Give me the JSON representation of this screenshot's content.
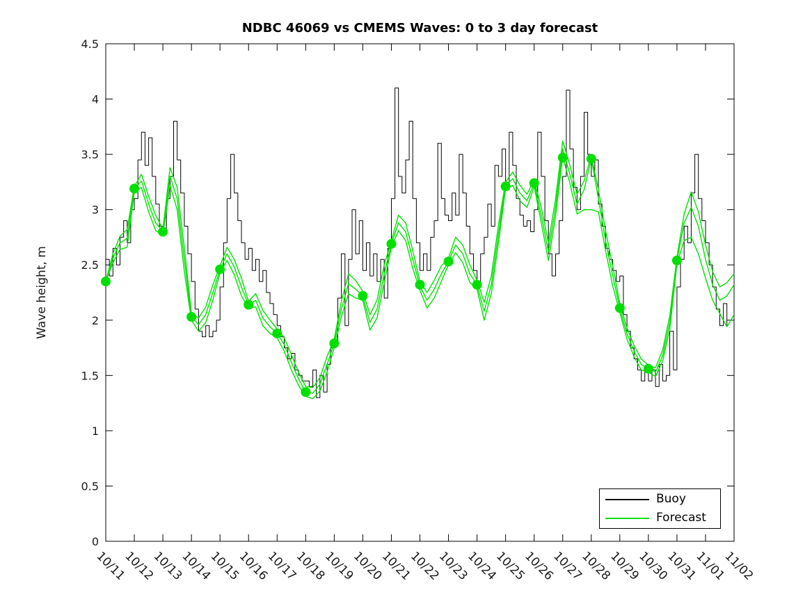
{
  "figure": {
    "background": "#ffffff"
  },
  "legend": {
    "position": "lower right inside",
    "items": [
      {
        "label": "Buoy",
        "color": "#000000"
      },
      {
        "label": "Forecast",
        "color": "#00e000"
      }
    ]
  },
  "chart_data": {
    "type": "line",
    "title": "NDBC 46069 vs CMEMS Waves: 0 to 3 day forecast",
    "xlabel": "",
    "ylabel": "Wave height, m",
    "ylim": [
      0,
      4.5
    ],
    "ytick_values": [
      0,
      0.5,
      1,
      1.5,
      2,
      2.5,
      3,
      3.5,
      4,
      4.5
    ],
    "ytick_labels": [
      "0",
      "0.5",
      "1",
      "1.5",
      "2",
      "2.5",
      "3",
      "3.5",
      "4",
      "4.5"
    ],
    "xtick_labels": [
      "10/11",
      "10/12",
      "10/13",
      "10/14",
      "10/15",
      "10/16",
      "10/17",
      "10/18",
      "10/19",
      "10/20",
      "10/21",
      "10/22",
      "10/23",
      "10/24",
      "10/25",
      "10/26",
      "10/27",
      "10/28",
      "10/29",
      "10/30",
      "10/31",
      "11/01",
      "11/02"
    ],
    "x_unit": "days since 10/11 00:00",
    "xlim_days": [
      0,
      22
    ],
    "grid": false,
    "tick_direction": "in",
    "series": [
      {
        "name": "Buoy",
        "color": "#000000",
        "line_width": 1,
        "draw_style": "steps",
        "t0_days": 0,
        "t_step_days": 0.125,
        "values": [
          2.55,
          2.4,
          2.65,
          2.5,
          2.75,
          2.9,
          2.7,
          3.0,
          3.1,
          3.45,
          3.7,
          3.4,
          3.65,
          3.3,
          3.05,
          2.85,
          2.8,
          3.1,
          3.3,
          3.8,
          3.45,
          3.15,
          2.85,
          2.6,
          2.35,
          2.1,
          1.9,
          1.85,
          1.95,
          1.85,
          1.9,
          2.0,
          2.3,
          2.7,
          3.1,
          3.5,
          3.15,
          2.9,
          2.7,
          2.55,
          2.65,
          2.45,
          2.55,
          2.35,
          2.45,
          2.25,
          2.15,
          2.05,
          1.95,
          1.85,
          1.75,
          1.65,
          1.7,
          1.55,
          1.5,
          1.45,
          1.45,
          1.4,
          1.55,
          1.3,
          1.5,
          1.35,
          1.6,
          1.75,
          1.8,
          2.2,
          2.6,
          1.95,
          2.55,
          3.0,
          2.6,
          2.9,
          2.45,
          2.7,
          2.4,
          2.6,
          2.35,
          2.55,
          2.2,
          2.65,
          3.1,
          4.1,
          3.3,
          3.15,
          3.45,
          3.8,
          3.1,
          2.7,
          2.45,
          2.6,
          2.45,
          2.75,
          2.9,
          3.6,
          3.1,
          2.95,
          2.9,
          3.15,
          2.95,
          3.5,
          3.15,
          2.85,
          2.6,
          2.45,
          2.35,
          2.6,
          2.75,
          3.05,
          2.85,
          3.4,
          3.3,
          3.55,
          3.2,
          3.7,
          3.4,
          3.1,
          2.95,
          2.85,
          2.9,
          2.8,
          3.0,
          3.7,
          3.3,
          2.9,
          2.6,
          2.4,
          2.6,
          2.9,
          3.3,
          4.08,
          3.55,
          3.2,
          3.0,
          3.3,
          3.88,
          3.5,
          3.3,
          3.45,
          3.05,
          2.85,
          2.65,
          2.55,
          2.45,
          2.35,
          2.4,
          2.05,
          1.9,
          1.75,
          1.65,
          1.55,
          1.45,
          1.55,
          1.45,
          1.55,
          1.4,
          1.6,
          1.45,
          1.5,
          1.9,
          1.55,
          2.3,
          2.55,
          2.85,
          2.7,
          3.15,
          3.5,
          3.1,
          2.9,
          2.7,
          2.5,
          2.3,
          2.1,
          1.95,
          2.15,
          1.95
        ]
      },
      {
        "name": "Forecast run 1",
        "color": "#00e000",
        "line_width": 1.4,
        "draw_style": "linear",
        "t0_days": 0,
        "t_step_days": 0.25,
        "values": [
          2.35,
          2.6,
          2.76,
          2.82,
          3.21,
          3.32,
          3.12,
          2.95,
          2.82,
          3.38,
          3.2,
          2.66,
          2.06,
          2.02,
          2.12,
          2.32,
          2.49,
          2.66,
          2.55,
          2.38,
          2.17,
          2.24,
          2.09,
          2.0,
          1.92,
          1.84,
          1.69,
          1.53,
          1.4,
          1.39,
          1.48,
          1.67,
          1.83,
          2.17,
          2.42,
          2.36,
          2.26,
          2.05,
          2.18,
          2.5,
          2.72,
          2.95,
          2.88,
          2.63,
          2.35,
          2.25,
          2.36,
          2.49,
          2.56,
          2.75,
          2.68,
          2.5,
          2.36,
          2.16,
          2.4,
          2.86,
          3.25,
          3.34,
          3.22,
          3.14,
          3.27,
          3.02,
          2.7,
          3.1,
          3.62,
          3.4,
          3.14,
          3.26,
          3.49,
          3.18,
          2.81,
          2.49,
          2.15,
          1.93,
          1.77,
          1.65,
          1.59,
          1.57,
          1.73,
          2.04,
          2.57,
          2.96,
          3.16,
          2.98,
          2.68,
          2.44,
          2.3,
          2.34,
          2.42
        ]
      },
      {
        "name": "Forecast run 2",
        "color": "#00e000",
        "line_width": 1.4,
        "draw_style": "linear",
        "t0_days": 0,
        "t_step_days": 0.25,
        "values": [
          2.35,
          2.56,
          2.7,
          2.74,
          3.19,
          3.26,
          3.05,
          2.88,
          2.8,
          3.3,
          3.1,
          2.55,
          2.03,
          1.96,
          2.05,
          2.25,
          2.46,
          2.6,
          2.48,
          2.3,
          2.14,
          2.18,
          2.02,
          1.94,
          1.88,
          1.78,
          1.62,
          1.47,
          1.35,
          1.34,
          1.42,
          1.6,
          1.79,
          2.1,
          2.33,
          2.28,
          2.22,
          1.98,
          2.1,
          2.42,
          2.69,
          2.88,
          2.8,
          2.55,
          2.31,
          2.18,
          2.28,
          2.42,
          2.53,
          2.68,
          2.6,
          2.42,
          2.32,
          2.08,
          2.32,
          2.78,
          3.22,
          3.28,
          3.15,
          3.08,
          3.24,
          2.95,
          2.62,
          3.02,
          3.55,
          3.32,
          3.05,
          3.18,
          3.46,
          3.1,
          2.72,
          2.4,
          2.11,
          1.88,
          1.72,
          1.6,
          1.56,
          1.53,
          1.68,
          1.98,
          2.54,
          2.88,
          3.02,
          2.85,
          2.55,
          2.32,
          2.18,
          2.22,
          2.32
        ]
      },
      {
        "name": "Forecast run 3",
        "color": "#00e000",
        "line_width": 1.4,
        "draw_style": "linear",
        "t0_days": 0,
        "t_step_days": 0.25,
        "values": [
          2.35,
          2.52,
          2.64,
          2.66,
          3.16,
          3.2,
          2.98,
          2.81,
          2.77,
          3.22,
          3.0,
          2.44,
          2.0,
          1.9,
          1.98,
          2.18,
          2.43,
          2.54,
          2.41,
          2.22,
          2.11,
          2.12,
          1.95,
          1.88,
          1.84,
          1.72,
          1.55,
          1.41,
          1.31,
          1.29,
          1.36,
          1.53,
          1.75,
          2.03,
          2.24,
          2.2,
          2.18,
          1.91,
          2.02,
          2.34,
          2.66,
          2.81,
          2.72,
          2.47,
          2.27,
          2.11,
          2.2,
          2.35,
          2.5,
          2.61,
          2.52,
          2.34,
          2.28,
          2.0,
          2.24,
          2.7,
          3.19,
          3.22,
          3.08,
          3.02,
          3.21,
          2.88,
          2.54,
          2.94,
          3.48,
          3.24,
          2.96,
          3.0,
          3.0,
          2.98,
          2.63,
          2.31,
          2.07,
          1.83,
          1.67,
          1.55,
          1.53,
          1.49,
          1.63,
          1.92,
          2.51,
          2.72,
          2.75,
          2.6,
          2.38,
          2.18,
          2.06,
          1.94,
          2.05
        ]
      }
    ],
    "forecast_start_markers": {
      "marker": "filled-circle",
      "color": "#00e000",
      "radius_px": 7,
      "dates": [
        "10/11",
        "10/12",
        "10/13",
        "10/14",
        "10/15",
        "10/16",
        "10/17",
        "10/18",
        "10/19",
        "10/20",
        "10/21",
        "10/22",
        "10/23",
        "10/24",
        "10/25",
        "10/26",
        "10/27",
        "10/28",
        "10/29",
        "10/30",
        "10/31"
      ],
      "x_days": [
        0,
        1,
        2,
        3,
        4,
        5,
        6,
        7,
        8,
        9,
        10,
        11,
        12,
        13,
        14,
        15,
        16,
        17,
        18,
        19,
        20
      ],
      "values": [
        2.35,
        3.19,
        2.8,
        2.03,
        2.46,
        2.14,
        1.88,
        1.35,
        1.79,
        2.22,
        2.69,
        2.32,
        2.53,
        2.32,
        3.21,
        3.24,
        3.47,
        3.46,
        2.11,
        1.56,
        2.54
      ]
    }
  }
}
